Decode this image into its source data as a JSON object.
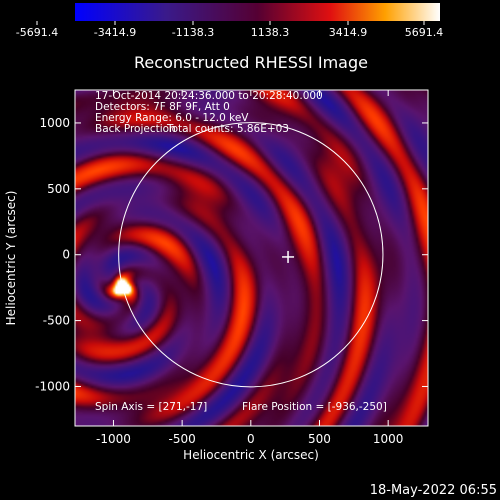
{
  "chart_data": {
    "type": "heatmap",
    "title": "Reconstructed RHESSI Image",
    "xlabel": "Heliocentric X (arcsec)",
    "ylabel": "Heliocentric Y (arcsec)",
    "xlim": [
      -1280,
      1290
    ],
    "ylim": [
      -1300,
      1250
    ],
    "x_ticks": [
      -1000,
      -500,
      0,
      500,
      1000
    ],
    "y_ticks": [
      -1000,
      -500,
      0,
      500,
      1000
    ],
    "info_lines": [
      "17-Oct-2014 20:24:36.000 to 20:28:40.000",
      "Detectors: 7F 8F 9F, Att 0",
      "Energy Range: 6.0 - 12.0 keV",
      "Back Projection",
      "Total counts: 5.86E+03"
    ],
    "spin_axis": "Spin Axis = [271,-17]",
    "flare_position_label": "Flare Position = [-936,-250]",
    "flare_position": [
      -936,
      -250
    ],
    "cross_marker": [
      271,
      -17
    ],
    "solar_limb_radius_arcsec": 962,
    "colorbar": {
      "min": -5691.4,
      "max": 5691.4,
      "tick_labels": [
        "-5691.4",
        "-3414.9",
        "-1138.3",
        "1138.3",
        "3414.9",
        "5691.4"
      ]
    },
    "colors": {
      "background": "#000000",
      "text": "#ffffff",
      "limb": "#ffffff"
    }
  },
  "timestamp": "18-May-2022 06:55"
}
